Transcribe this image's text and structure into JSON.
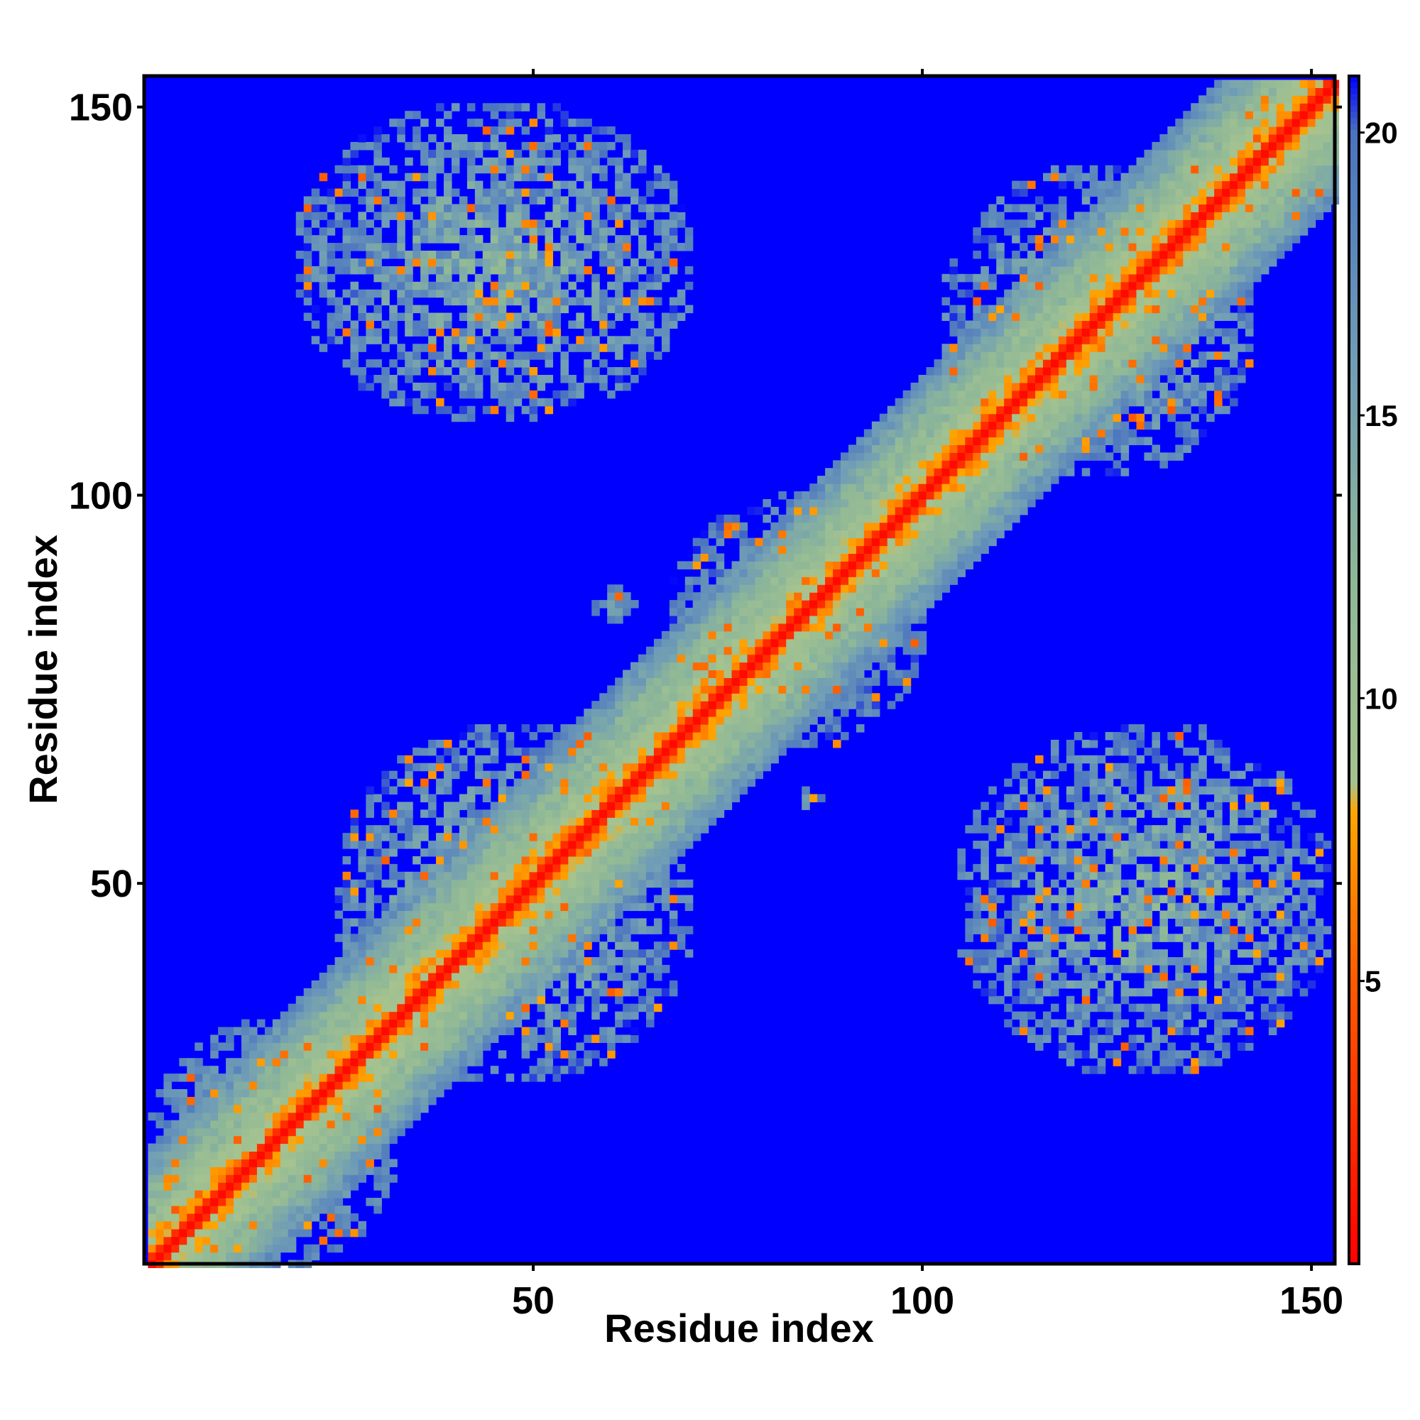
{
  "chart_data": {
    "type": "heatmap",
    "title": "",
    "xlabel": "Residue index",
    "ylabel": "Residue index",
    "x_range": [
      1,
      153
    ],
    "y_range": [
      1,
      153
    ],
    "x_ticks": [
      50,
      100,
      150
    ],
    "y_ticks": [
      50,
      100,
      150
    ],
    "colorbar": {
      "range": [
        0,
        21
      ],
      "ticks": [
        5,
        10,
        15,
        20
      ],
      "stops": [
        {
          "value": 0,
          "color": "#ff0000"
        },
        {
          "value": 5,
          "color": "#ff5a00"
        },
        {
          "value": 8,
          "color": "#ffa500"
        },
        {
          "value": 8.5,
          "color": "#a6c38f"
        },
        {
          "value": 12,
          "color": "#8fb897"
        },
        {
          "value": 16,
          "color": "#6f9cb6"
        },
        {
          "value": 20,
          "color": "#4a73c0"
        },
        {
          "value": 21,
          "color": "#0000ff"
        }
      ]
    },
    "background_value": 21,
    "structure": {
      "diagonal": {
        "core": 1,
        "orange": 7,
        "halo": 15
      },
      "blocks": [
        {
          "x": [
            1,
            32
          ],
          "y": [
            1,
            32
          ],
          "min": 11,
          "spread": 6
        },
        {
          "x": [
            25,
            70
          ],
          "y": [
            25,
            70
          ],
          "min": 9,
          "spread": 9
        },
        {
          "x": [
            68,
            100
          ],
          "y": [
            68,
            100
          ],
          "min": 11,
          "spread": 7
        },
        {
          "x": [
            103,
            142
          ],
          "y": [
            103,
            142
          ],
          "min": 9,
          "spread": 9
        },
        {
          "x": [
            135,
            153
          ],
          "y": [
            135,
            153
          ],
          "min": 10,
          "spread": 6
        },
        {
          "x": [
            20,
            70
          ],
          "y": [
            110,
            150
          ],
          "min": 9,
          "spread": 9
        },
        {
          "x": [
            105,
            152
          ],
          "y": [
            26,
            70
          ],
          "min": 9,
          "spread": 9
        },
        {
          "x": [
            58,
            63
          ],
          "y": [
            83,
            88
          ],
          "min": 13,
          "spread": 4
        },
        {
          "x": [
            84,
            87
          ],
          "y": [
            59,
            63
          ],
          "min": 13,
          "spread": 4
        }
      ]
    }
  }
}
